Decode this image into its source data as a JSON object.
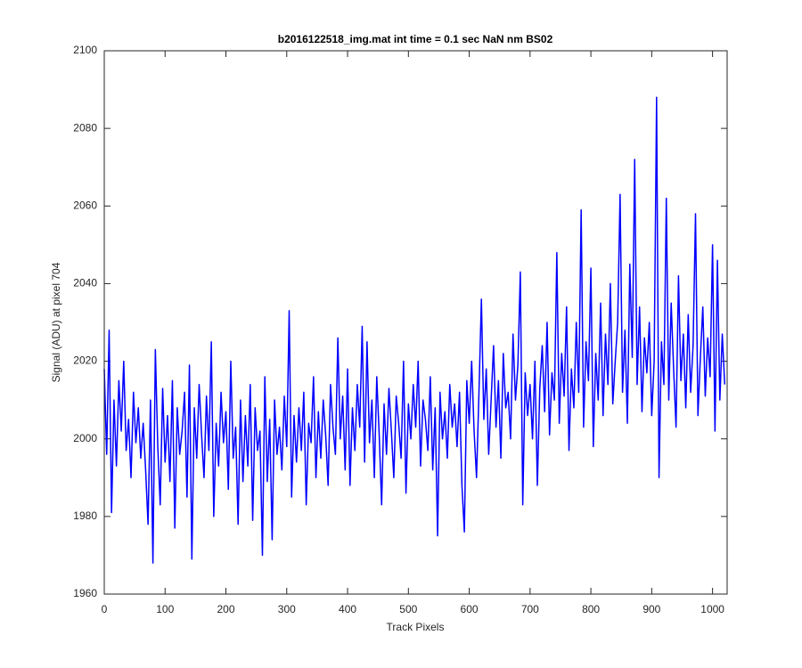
{
  "chart_data": {
    "type": "line",
    "title": "b2016122518_img.mat int time = 0.1 sec  NaN nm BS02",
    "xlabel": "Track Pixels",
    "ylabel": "Signal (ADU) at pixel 704",
    "color": "#0000ff",
    "xlim": [
      0,
      1024
    ],
    "ylim": [
      1960,
      2100
    ],
    "xticks": [
      0,
      100,
      200,
      300,
      400,
      500,
      600,
      700,
      800,
      900,
      1000
    ],
    "yticks": [
      1960,
      1980,
      2000,
      2020,
      2040,
      2060,
      2080,
      2100
    ],
    "x": [
      0,
      4,
      8,
      12,
      16,
      20,
      24,
      28,
      32,
      36,
      40,
      44,
      48,
      52,
      56,
      60,
      64,
      68,
      72,
      76,
      80,
      84,
      88,
      92,
      96,
      100,
      104,
      108,
      112,
      116,
      120,
      124,
      128,
      132,
      136,
      140,
      144,
      148,
      152,
      156,
      160,
      164,
      168,
      172,
      176,
      180,
      184,
      188,
      192,
      196,
      200,
      204,
      208,
      212,
      216,
      220,
      224,
      228,
      232,
      236,
      240,
      244,
      248,
      252,
      256,
      260,
      264,
      268,
      272,
      276,
      280,
      284,
      288,
      292,
      296,
      300,
      304,
      308,
      312,
      316,
      320,
      324,
      328,
      332,
      336,
      340,
      344,
      348,
      352,
      356,
      360,
      364,
      368,
      372,
      376,
      380,
      384,
      388,
      392,
      396,
      400,
      404,
      408,
      412,
      416,
      420,
      424,
      428,
      432,
      436,
      440,
      444,
      448,
      452,
      456,
      460,
      464,
      468,
      472,
      476,
      480,
      484,
      488,
      492,
      496,
      500,
      504,
      508,
      512,
      516,
      520,
      524,
      528,
      532,
      536,
      540,
      544,
      548,
      552,
      556,
      560,
      564,
      568,
      572,
      576,
      580,
      584,
      588,
      592,
      596,
      600,
      604,
      608,
      612,
      616,
      620,
      624,
      628,
      632,
      636,
      640,
      644,
      648,
      652,
      656,
      660,
      664,
      668,
      672,
      676,
      680,
      684,
      688,
      692,
      696,
      700,
      704,
      708,
      712,
      716,
      720,
      724,
      728,
      732,
      736,
      740,
      744,
      748,
      752,
      756,
      760,
      764,
      768,
      772,
      776,
      780,
      784,
      788,
      792,
      796,
      800,
      804,
      808,
      812,
      816,
      820,
      824,
      828,
      832,
      836,
      840,
      844,
      848,
      852,
      856,
      860,
      864,
      868,
      872,
      876,
      880,
      884,
      888,
      892,
      896,
      900,
      904,
      908,
      912,
      916,
      920,
      924,
      928,
      932,
      936,
      940,
      944,
      948,
      952,
      956,
      960,
      964,
      968,
      972,
      976,
      980,
      984,
      988,
      992,
      996,
      1000,
      1004,
      1008,
      1012,
      1016,
      1020
    ],
    "values": [
      2018,
      1996,
      2028,
      1981,
      2010,
      1993,
      2015,
      2002,
      2020,
      1997,
      2005,
      1990,
      2012,
      1999,
      2008,
      1995,
      2004,
      1992,
      1978,
      2010,
      1968,
      2023,
      1998,
      1983,
      2013,
      1994,
      2006,
      1989,
      2015,
      1977,
      2008,
      1996,
      2002,
      2012,
      1985,
      2019,
      1969,
      2008,
      1995,
      2014,
      2001,
      1990,
      2011,
      1997,
      2025,
      1980,
      2004,
      1993,
      2012,
      1999,
      2007,
      1987,
      2020,
      1995,
      2003,
      1978,
      2010,
      1989,
      2006,
      1993,
      2014,
      1979,
      2008,
      1997,
      2002,
      1970,
      2016,
      1989,
      2005,
      1974,
      2010,
      1996,
      2003,
      1992,
      2011,
      1998,
      2033,
      1985,
      2006,
      1994,
      2008,
      1997,
      2012,
      1983,
      2004,
      1999,
      2016,
      1990,
      2007,
      1995,
      2010,
      2001,
      1988,
      2014,
      2003,
      1996,
      2026,
      2000,
      2011,
      1992,
      2018,
      1988,
      2008,
      1997,
      2014,
      2003,
      2029,
      1994,
      2025,
      1999,
      2010,
      1990,
      2016,
      2001,
      1983,
      2009,
      1996,
      2013,
      2002,
      1990,
      2011,
      2004,
      1995,
      2020,
      1986,
      2009,
      2000,
      2014,
      2003,
      2020,
      1993,
      2010,
      2005,
      1997,
      2016,
      1992,
      2008,
      1975,
      2012,
      2000,
      2007,
      1995,
      2014,
      2003,
      2009,
      1998,
      2012,
      1988,
      1976,
      2015,
      2004,
      2020,
      2002,
      1990,
      2012,
      2036,
      2005,
      2018,
      1996,
      2010,
      2024,
      2003,
      2015,
      1995,
      2022,
      2008,
      2012,
      2000,
      2027,
      2010,
      2019,
      2043,
      1983,
      2017,
      2006,
      2014,
      2000,
      2020,
      1988,
      2013,
      2024,
      2007,
      2030,
      2001,
      2017,
      2010,
      2048,
      2004,
      2022,
      2011,
      2034,
      1997,
      2018,
      2008,
      2030,
      2012,
      2059,
      2003,
      2025,
      2015,
      2044,
      1998,
      2022,
      2010,
      2035,
      2006,
      2027,
      2014,
      2040,
      2009,
      2020,
      2030,
      2063,
      2012,
      2028,
      2004,
      2045,
      2021,
      2072,
      2014,
      2034,
      2007,
      2026,
      2017,
      2030,
      2006,
      2020,
      2088,
      1990,
      2025,
      2014,
      2062,
      2010,
      2035,
      2018,
      2003,
      2042,
      2015,
      2027,
      2008,
      2032,
      2012,
      2024,
      2058,
      2006,
      2021,
      2034,
      2011,
      2026,
      2016,
      2050,
      2002,
      2046,
      2010,
      2027,
      2014
    ]
  }
}
